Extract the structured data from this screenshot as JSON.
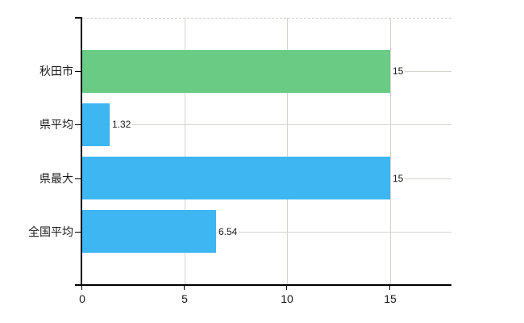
{
  "chart_data": {
    "type": "bar",
    "orientation": "horizontal",
    "title": "",
    "xlabel": "",
    "ylabel": "",
    "categories": [
      "秋田市",
      "県平均",
      "県最大",
      "全国平均"
    ],
    "values": [
      15,
      1.32,
      15,
      6.54
    ],
    "value_labels": [
      "15",
      "1.32",
      "15",
      "6.54"
    ],
    "bar_colors": [
      "#6acc84",
      "#3db6f2",
      "#3db6f2",
      "#3db6f2"
    ],
    "xlim": [
      0,
      18
    ],
    "xticks": [
      0,
      5,
      10,
      15
    ],
    "xtick_labels": [
      "0",
      "5",
      "10",
      "15"
    ],
    "grid": true,
    "legend": "none",
    "colors": {
      "background": "#ffffff",
      "axis": "#000000",
      "gridline": "#d6d4cf",
      "top_border": "#cfccc8",
      "text": "#1b1b1b"
    }
  }
}
